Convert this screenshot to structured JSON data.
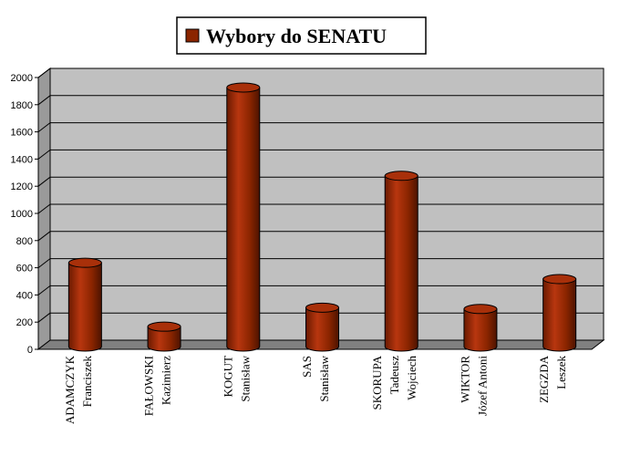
{
  "chart_data": {
    "type": "bar",
    "title": "Wybory do SENATU",
    "categories": [
      [
        "ADAMCZYK",
        "Franciszek"
      ],
      [
        "FAŁOWSKI",
        "Kazimierz"
      ],
      [
        "KOGUT",
        "Stanisław"
      ],
      [
        "SAS",
        "Stanisław"
      ],
      [
        "SKORUPA",
        "Tadeusz",
        "Wojciech"
      ],
      [
        "WIKTOR",
        "Józef Antoni"
      ],
      [
        "ZEGZDA",
        "Leszek"
      ]
    ],
    "series": [
      {
        "name": "Wybory do SENATU",
        "values": [
          650,
          180,
          1940,
          320,
          1290,
          310,
          530
        ]
      }
    ],
    "yticks": [
      "0",
      "200",
      "400",
      "600",
      "800",
      "1000",
      "1200",
      "1400",
      "1600",
      "1800",
      "2000"
    ],
    "ylim": [
      0,
      2000
    ],
    "grid": true,
    "legend_position": "top-center",
    "colors": {
      "bar": "#8B2500",
      "bar_light": "#C2401A",
      "bar_dark": "#5A1600",
      "wall": "#C0C0C0",
      "floor": "#808080",
      "grid": "#000000"
    }
  }
}
